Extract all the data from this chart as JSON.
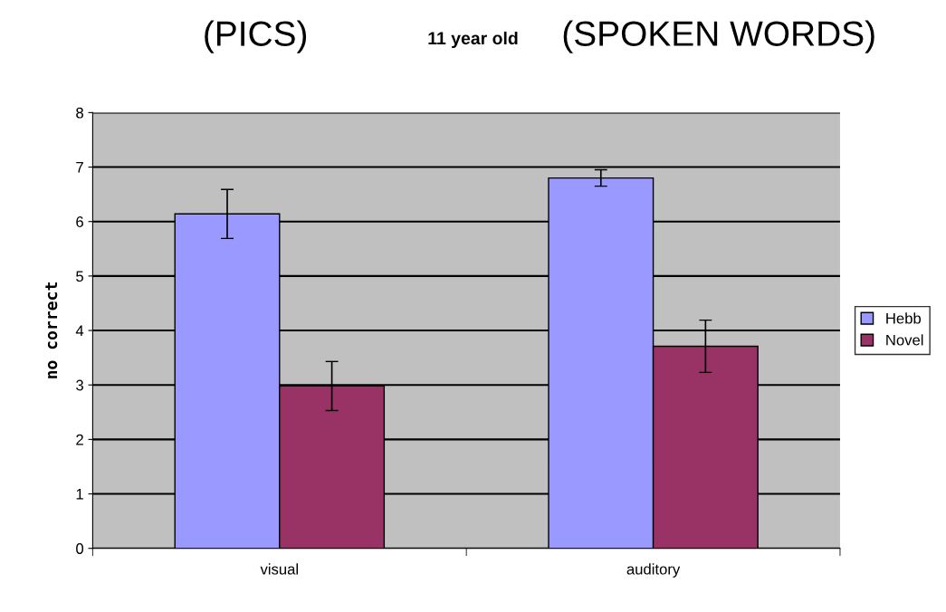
{
  "chart_data": {
    "type": "bar",
    "title": "11 year old",
    "ylabel": "no correct",
    "annotations": [
      "(PICS)",
      "(SPOKEN WORDS)"
    ],
    "categories": [
      "visual",
      "auditory"
    ],
    "series": [
      {
        "name": "Hebb",
        "color": "#9999ff",
        "values": [
          6.14,
          6.8
        ],
        "errors": [
          0.45,
          0.15
        ]
      },
      {
        "name": "Novel",
        "color": "#993366",
        "values": [
          2.98,
          3.71
        ],
        "errors": [
          0.45,
          0.48
        ]
      }
    ],
    "ylim": [
      0,
      8
    ],
    "yticks": [
      0,
      1,
      2,
      3,
      4,
      5,
      6,
      7,
      8
    ],
    "grid": "y",
    "legend": "right"
  }
}
